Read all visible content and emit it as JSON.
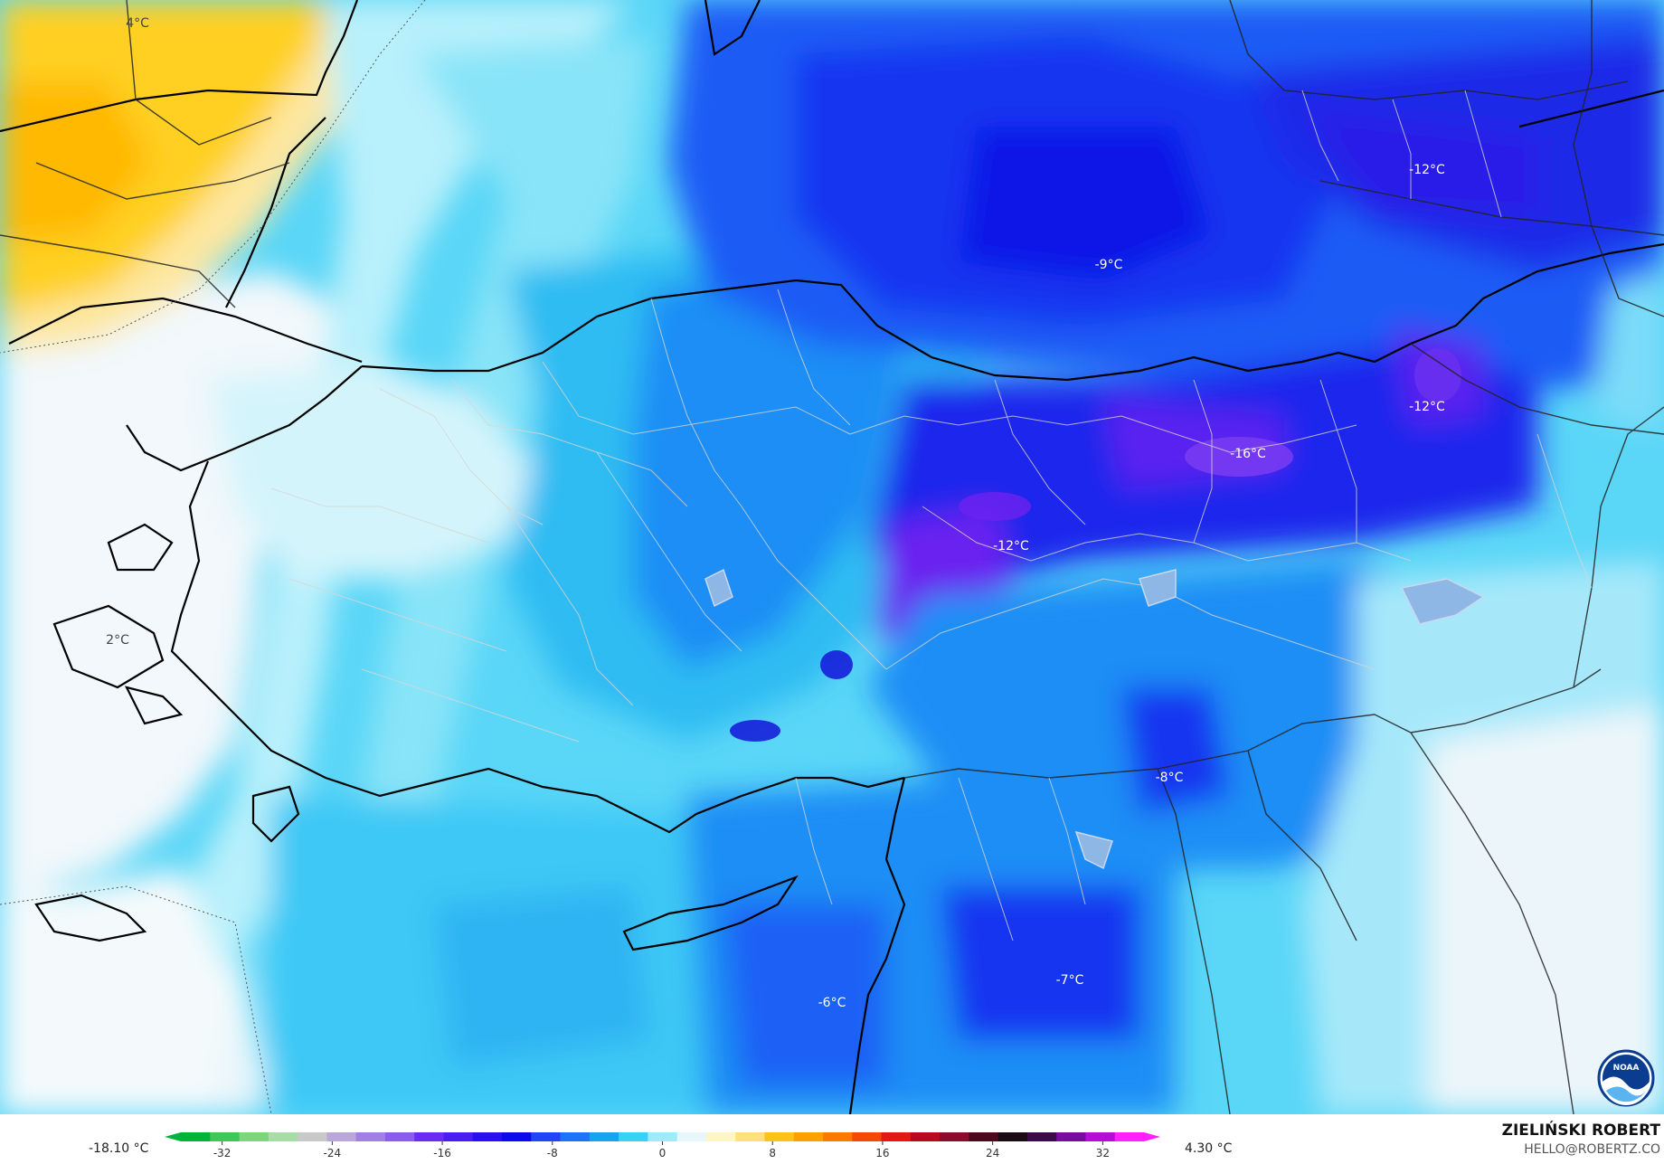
{
  "legend": {
    "min_value": "-18.10 °C",
    "max_value": "4.30 °C",
    "ticks": [
      "-32",
      "-24",
      "-16",
      "-8",
      "0",
      "8",
      "16",
      "24",
      "32"
    ],
    "tick_values": [
      -32,
      -24,
      -16,
      -8,
      0,
      8,
      16,
      24,
      32
    ],
    "range": [
      -35,
      35
    ],
    "colors": [
      "#00b33c",
      "#3cc85a",
      "#7ad67f",
      "#a8dda8",
      "#c9c9c9",
      "#b9a7d9",
      "#a27fe6",
      "#8a5cf0",
      "#6b2cf2",
      "#4a1ef0",
      "#2a10ee",
      "#0c0ae8",
      "#2244f5",
      "#1a74f5",
      "#16a4f0",
      "#38d2f6",
      "#9cecfb",
      "#e7f7fb",
      "#fff6c8",
      "#ffe07a",
      "#ffc21a",
      "#ffa000",
      "#ff7800",
      "#f24a00",
      "#e01818",
      "#b80a1e",
      "#8e0a2a",
      "#4a0a1e",
      "#1a0a14",
      "#3a0a4a",
      "#7a0aa0",
      "#b80ad8",
      "#ff20ff"
    ]
  },
  "credit": {
    "name": "ZIELIŃSKI ROBERT",
    "email": "HELLO@ROBERTZ.CO"
  },
  "map_labels": [
    {
      "text": "4°C"
    },
    {
      "text": "-12°C"
    },
    {
      "text": "-9°C"
    },
    {
      "text": "-12°C"
    },
    {
      "text": "-16°C"
    },
    {
      "text": "-12°C"
    },
    {
      "text": "2°C"
    },
    {
      "text": "-8°C"
    },
    {
      "text": "-7°C"
    },
    {
      "text": "-6°C"
    }
  ],
  "logo": {
    "text": "NOAA",
    "colors": [
      "#0a3d8f",
      "#5ab4f0"
    ]
  }
}
